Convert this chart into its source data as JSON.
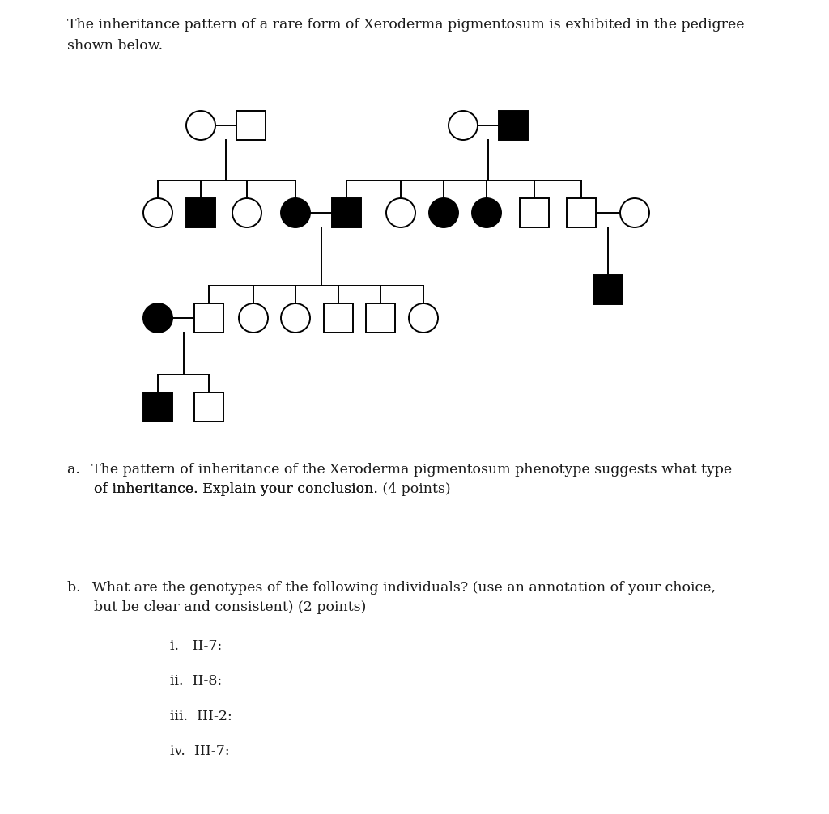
{
  "title_line1": "The inheritance pattern of a rare form of Xeroderma pigmentosum is exhibited in the pedigree",
  "title_line2": "shown below.",
  "qa_text1": "a.  The pattern of inheritance of the Xeroderma pigmentosum phenotype suggests what type",
  "qa_text2": "      of inheritance. Explain your conclusion. ",
  "qa_bold": "(4 points)",
  "qb_text1": "b.  What are the genotypes of the following individuals? (use an annotation of your choice,",
  "qb_text2": "      but be clear and consistent) ",
  "qb_bold": "(2 points)",
  "qi_items": [
    "i.   II-7:",
    "ii.  II-8:",
    "iii.  III-2:",
    "iv.  III-7:"
  ],
  "bg_color": "#ffffff",
  "symbol_filled": "#000000",
  "symbol_empty": "#ffffff",
  "edge_color": "#000000",
  "line_color": "#000000",
  "text_color": "#1a1a1a",
  "lw": 1.4,
  "r": 0.018
}
